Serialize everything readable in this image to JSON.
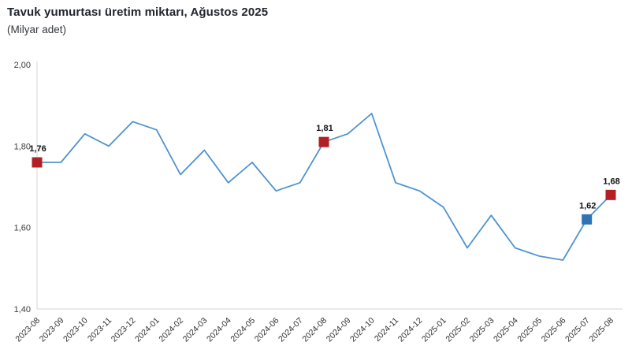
{
  "header": {
    "title": "Tavuk yumurtası üretim miktarı, Ağustos 2025",
    "subtitle": "(Milyar adet)"
  },
  "chart_data": {
    "type": "line",
    "title": "Tavuk yumurtası üretim miktarı, Ağustos 2025",
    "subtitle": "(Milyar adet)",
    "xlabel": "",
    "ylabel": "(Milyar adet)",
    "categories": [
      "2023-08",
      "2023-09",
      "2023-10",
      "2023-11",
      "2023-12",
      "2024-01",
      "2024-02",
      "2024-03",
      "2024-04",
      "2024-05",
      "2024-06",
      "2024-07",
      "2024-08",
      "2024-09",
      "2024-10",
      "2024-11",
      "2024-12",
      "2025-01",
      "2025-02",
      "2025-03",
      "2025-04",
      "2025-05",
      "2025-06",
      "2025-07",
      "2025-08"
    ],
    "values": [
      1.76,
      1.76,
      1.83,
      1.8,
      1.86,
      1.84,
      1.73,
      1.79,
      1.71,
      1.76,
      1.69,
      1.71,
      1.81,
      1.83,
      1.88,
      1.71,
      1.69,
      1.65,
      1.55,
      1.63,
      1.55,
      1.53,
      1.52,
      1.62,
      1.68
    ],
    "ylim": [
      1.4,
      2.0
    ],
    "y_ticks": [
      {
        "value": 2.0,
        "label": "2,00"
      },
      {
        "value": 1.8,
        "label": "1,80"
      },
      {
        "value": 1.6,
        "label": "1,60"
      },
      {
        "value": 1.4,
        "label": "1,40"
      }
    ],
    "grid": false,
    "legend": "none",
    "line_color": "#4e93d0",
    "axis_color": "#d6d6d6",
    "markers": [
      {
        "index": 0,
        "label": "1,76",
        "color": "#b22026"
      },
      {
        "index": 12,
        "label": "1,81",
        "color": "#b22026"
      },
      {
        "index": 23,
        "label": "1,62",
        "color": "#2e75b6"
      },
      {
        "index": 24,
        "label": "1,68",
        "color": "#b22026"
      }
    ]
  }
}
